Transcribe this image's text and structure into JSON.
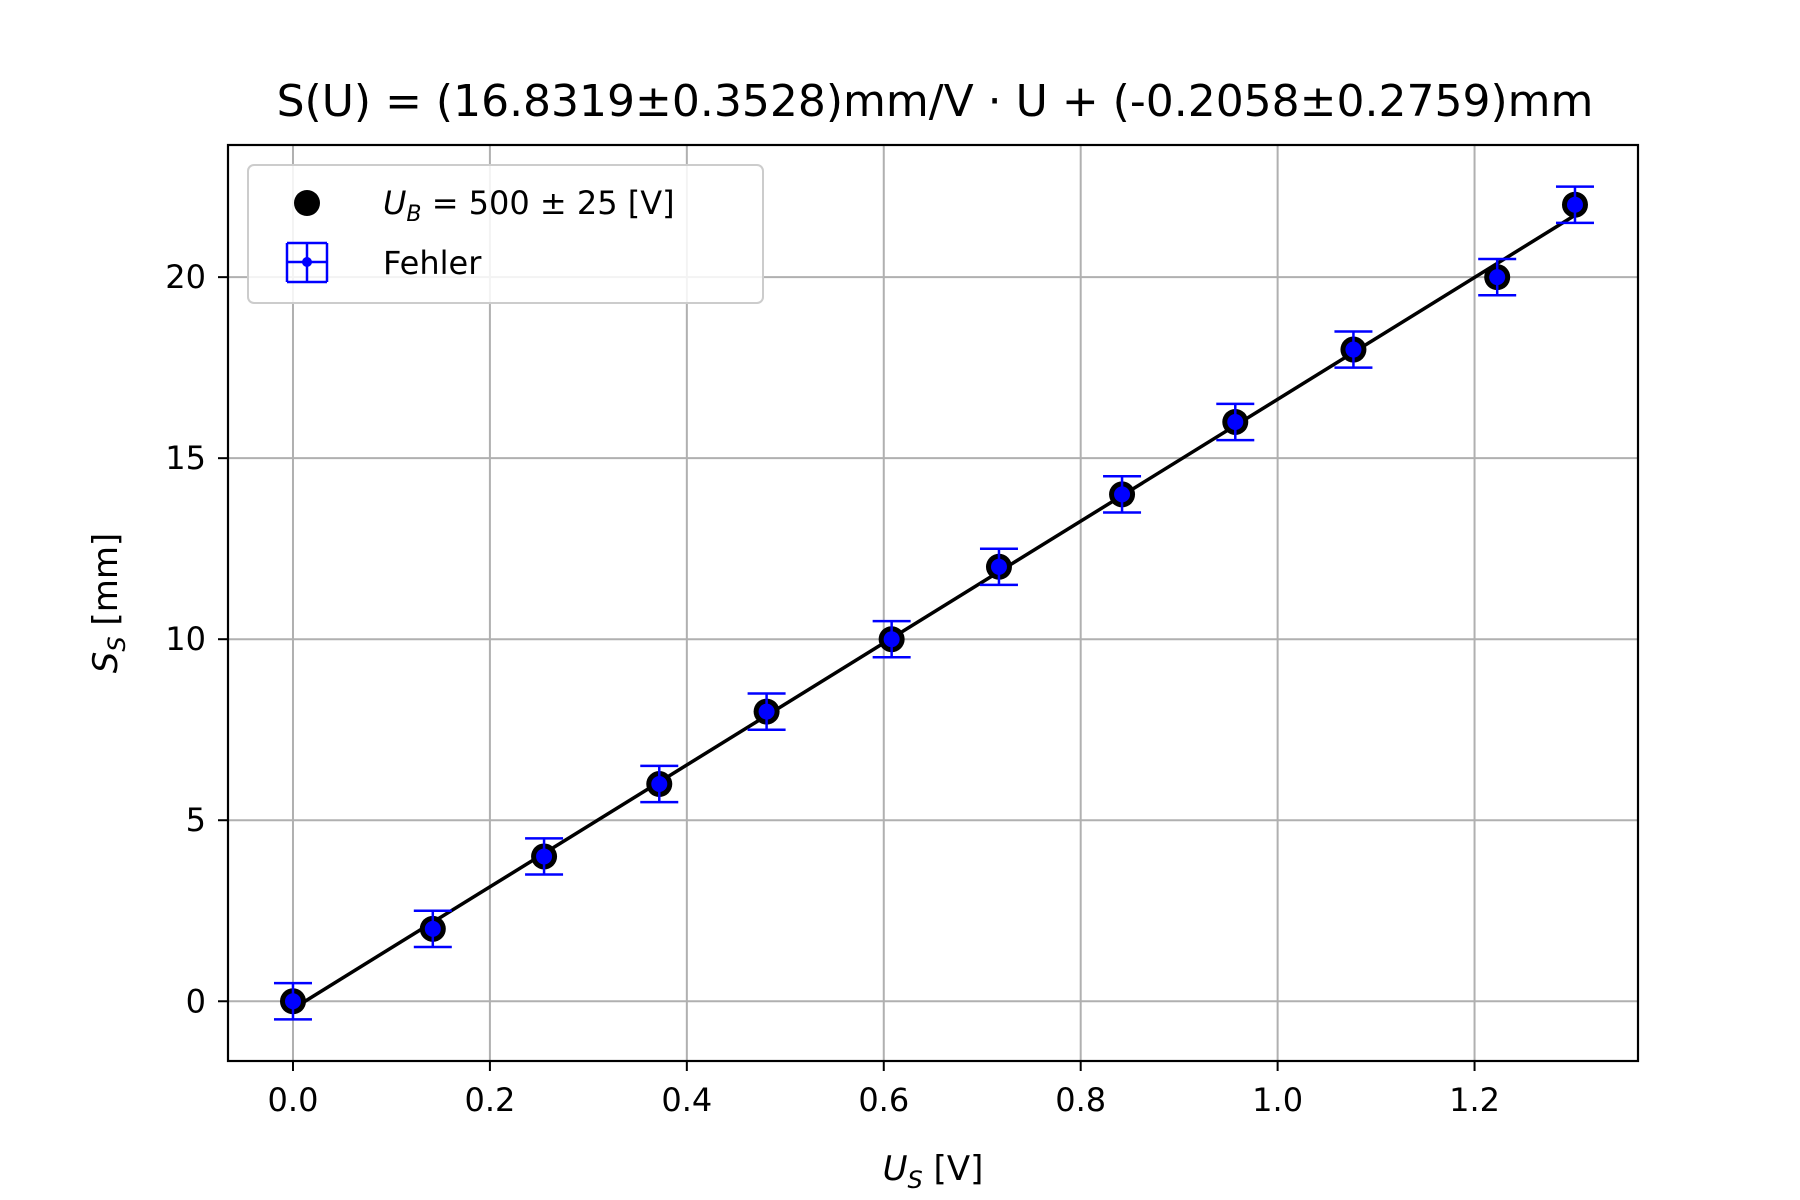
{
  "chart_data": {
    "type": "scatter",
    "title": "S(U) = (16.8319±0.3528)mm/V · U + (-0.2058±0.2759)mm",
    "xlabel": {
      "main": "U",
      "sub": "S",
      "unit": " [V]"
    },
    "ylabel": {
      "main": "S",
      "sub": "S",
      "unit": " [mm]"
    },
    "xlim": [
      -0.066,
      1.366
    ],
    "ylim": [
      -1.65,
      23.65
    ],
    "xticks": [
      0.0,
      0.2,
      0.4,
      0.6,
      0.8,
      1.0,
      1.2
    ],
    "xtick_labels": [
      "0.0",
      "0.2",
      "0.4",
      "0.6",
      "0.8",
      "1.0",
      "1.2"
    ],
    "yticks": [
      0,
      5,
      10,
      15,
      20
    ],
    "ytick_labels": [
      "0",
      "5",
      "10",
      "15",
      "20"
    ],
    "grid": true,
    "legend_position": "top-left",
    "legend": [
      {
        "label_main": "U",
        "label_sub": "B",
        "label_rest": " = 500 ± 25 [V]",
        "marker": "black-dot"
      },
      {
        "label": "Fehler",
        "marker": "blue-errorbar"
      }
    ],
    "points": [
      {
        "x": 0.0,
        "y": 0,
        "yerr": 0.5,
        "xerr": 0.004
      },
      {
        "x": 0.142,
        "y": 2,
        "yerr": 0.5,
        "xerr": 0.004
      },
      {
        "x": 0.255,
        "y": 4,
        "yerr": 0.5,
        "xerr": 0.004
      },
      {
        "x": 0.372,
        "y": 6,
        "yerr": 0.5,
        "xerr": 0.004
      },
      {
        "x": 0.481,
        "y": 8,
        "yerr": 0.5,
        "xerr": 0.004
      },
      {
        "x": 0.608,
        "y": 10,
        "yerr": 0.5,
        "xerr": 0.004
      },
      {
        "x": 0.717,
        "y": 12,
        "yerr": 0.5,
        "xerr": 0.004
      },
      {
        "x": 0.842,
        "y": 14,
        "yerr": 0.5,
        "xerr": 0.004
      },
      {
        "x": 0.957,
        "y": 16,
        "yerr": 0.5,
        "xerr": 0.004
      },
      {
        "x": 1.077,
        "y": 18,
        "yerr": 0.5,
        "xerr": 0.004
      },
      {
        "x": 1.223,
        "y": 20,
        "yerr": 0.5,
        "xerr": 0.004
      },
      {
        "x": 1.302,
        "y": 22,
        "yerr": 0.5,
        "xerr": 0.004
      }
    ],
    "fit": {
      "slope": 16.8319,
      "intercept": -0.2058,
      "x_range": [
        0.0,
        1.302
      ]
    },
    "colors": {
      "points": "#000000",
      "errorbars": "#0000ff",
      "fit": "#000000",
      "grid": "#b0b0b0"
    }
  }
}
